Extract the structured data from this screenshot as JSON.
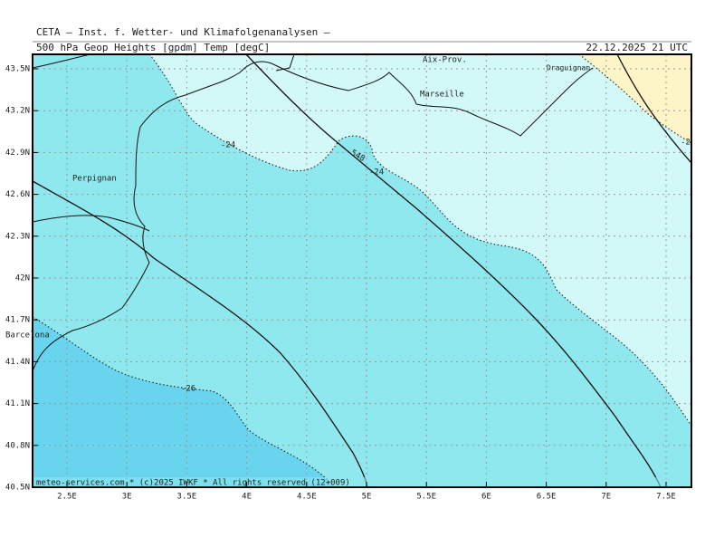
{
  "header": {
    "institute": "CETA — Inst. f. Wetter- und Klimafolgenanalysen —",
    "product": "500 hPa Geop Heights [gpdm] Temp [degC]",
    "valid": "22.12.2025 21 UTC"
  },
  "lat_labels": [
    "43.5N",
    "43.2N",
    "42.9N",
    "42.6N",
    "42.3N",
    "42N",
    "41.7N",
    "41.4N",
    "41.1N",
    "40.8N",
    "40.5N"
  ],
  "lon_labels": [
    "2.5E",
    "3E",
    "3.5E",
    "4E",
    "4.5E",
    "5E",
    "5.5E",
    "6E",
    "6.5E",
    "7E",
    "7.5E"
  ],
  "contour_labels": {
    "height": "548",
    "temp_a": "-24",
    "temp_b": "-24",
    "temp_c": "-26",
    "temp_d": "-2"
  },
  "places": {
    "perpignan": "Perpignan",
    "barcelona": "Barcelona",
    "marseille": "Marseille",
    "aix": "Aix-Prov.",
    "draguignan": "Draguignan"
  },
  "footer": "meteo-services.com * (c)2025 IWKF * All rights reserved (12+009)"
}
